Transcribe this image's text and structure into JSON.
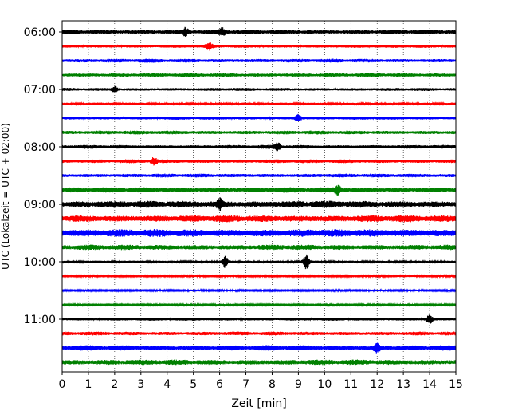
{
  "chart_data": {
    "type": "line",
    "title": "",
    "xlabel": "Zeit  [min]",
    "ylabel": "UTC (Lokalzeit = UTC + 02:00)",
    "xlim": [
      0,
      15
    ],
    "x_ticks": [
      "0",
      "1",
      "2",
      "3",
      "4",
      "5",
      "6",
      "7",
      "8",
      "9",
      "10",
      "11",
      "12",
      "13",
      "14",
      "15"
    ],
    "y_ticks": [
      "06:00",
      "07:00",
      "08:00",
      "09:00",
      "10:00",
      "11:00"
    ],
    "grid": "vertical dotted at each minute",
    "line_colors": [
      "#000000",
      "#ff0000",
      "#0000ff",
      "#008000"
    ],
    "series": [
      {
        "start": "06:00",
        "amplitude": 3,
        "events": [
          {
            "x": 4.7,
            "amp": 4
          },
          {
            "x": 6.1,
            "amp": 4
          }
        ]
      },
      {
        "start": "06:15",
        "amplitude": 2,
        "events": [
          {
            "x": 5.6,
            "amp": 4
          }
        ]
      },
      {
        "start": "06:30",
        "amplitude": 2.5,
        "events": []
      },
      {
        "start": "06:45",
        "amplitude": 2.5,
        "events": []
      },
      {
        "start": "07:00",
        "amplitude": 2,
        "events": [
          {
            "x": 2.0,
            "amp": 3
          }
        ]
      },
      {
        "start": "07:15",
        "amplitude": 1.5,
        "events": []
      },
      {
        "start": "07:30",
        "amplitude": 2,
        "events": [
          {
            "x": 9.0,
            "amp": 4
          }
        ]
      },
      {
        "start": "07:45",
        "amplitude": 2.5,
        "events": []
      },
      {
        "start": "08:00",
        "amplitude": 2.5,
        "events": [
          {
            "x": 8.2,
            "amp": 5
          }
        ]
      },
      {
        "start": "08:15",
        "amplitude": 2.5,
        "events": [
          {
            "x": 3.5,
            "amp": 4
          }
        ]
      },
      {
        "start": "08:30",
        "amplitude": 2.5,
        "events": []
      },
      {
        "start": "08:45",
        "amplitude": 3.5,
        "events": [
          {
            "x": 10.5,
            "amp": 5
          }
        ]
      },
      {
        "start": "09:00",
        "amplitude": 4.5,
        "events": [
          {
            "x": 6.0,
            "amp": 6
          }
        ]
      },
      {
        "start": "09:15",
        "amplitude": 4.5,
        "events": []
      },
      {
        "start": "09:30",
        "amplitude": 5,
        "events": []
      },
      {
        "start": "09:45",
        "amplitude": 3.5,
        "events": []
      },
      {
        "start": "10:00",
        "amplitude": 1.5,
        "events": [
          {
            "x": 6.2,
            "amp": 7
          },
          {
            "x": 9.3,
            "amp": 9
          }
        ]
      },
      {
        "start": "10:15",
        "amplitude": 1.2,
        "events": []
      },
      {
        "start": "10:30",
        "amplitude": 1.2,
        "events": []
      },
      {
        "start": "10:45",
        "amplitude": 1.2,
        "events": []
      },
      {
        "start": "11:00",
        "amplitude": 2,
        "events": [
          {
            "x": 14.0,
            "amp": 5
          }
        ]
      },
      {
        "start": "11:15",
        "amplitude": 2.5,
        "events": []
      },
      {
        "start": "11:30",
        "amplitude": 3.5,
        "events": [
          {
            "x": 12.0,
            "amp": 5
          }
        ]
      },
      {
        "start": "11:45",
        "amplitude": 3.5,
        "events": []
      }
    ]
  }
}
